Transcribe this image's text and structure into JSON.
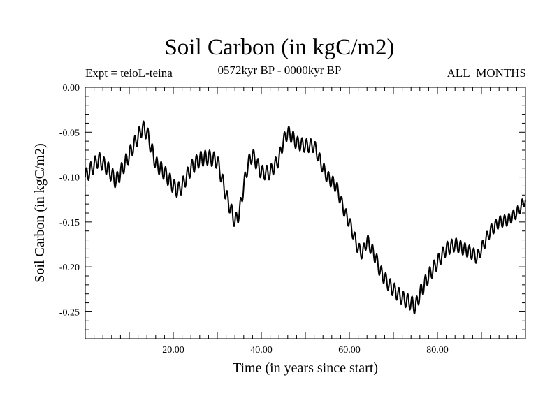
{
  "chart_data": {
    "type": "line",
    "title": "Soil Carbon (in kgC/m2)",
    "subtitle": "0572kyr BP - 0000kyr BP",
    "left_annotation": "Expt = teioL-teina",
    "right_annotation": "ALL_MONTHS",
    "xlabel": "Time (in years since start)",
    "ylabel": "Soil Carbon (in kgC/m2)",
    "xlim": [
      0,
      100
    ],
    "ylim": [
      -0.28,
      0.0
    ],
    "x_ticks": [
      20,
      40,
      60,
      80
    ],
    "x_tick_labels": [
      "20.00",
      "40.00",
      "60.00",
      "80.00"
    ],
    "y_ticks": [
      0.0,
      -0.05,
      -0.1,
      -0.15,
      -0.2,
      -0.25
    ],
    "y_tick_labels": [
      "0.00",
      "-0.05",
      "-0.10",
      "-0.15",
      "-0.20",
      "-0.25"
    ],
    "series": [
      {
        "name": "Soil Carbon",
        "oscillation_period_years": 1,
        "trend": {
          "x": [
            0,
            3,
            5,
            7,
            9,
            11,
            13,
            14,
            16,
            18,
            20,
            21,
            22,
            24,
            26,
            28,
            30,
            32,
            33,
            34,
            35,
            36,
            37,
            38,
            39,
            40,
            42,
            44,
            45,
            46,
            47,
            48,
            50,
            52,
            54,
            55,
            57,
            59,
            60,
            62,
            63,
            64,
            66,
            67,
            69,
            70,
            72,
            74,
            75,
            76,
            78,
            80,
            82,
            84,
            86,
            88,
            89,
            90,
            92,
            94,
            96,
            98,
            100
          ],
          "y": [
            -0.1,
            -0.08,
            -0.09,
            -0.105,
            -0.085,
            -0.065,
            -0.045,
            -0.05,
            -0.085,
            -0.095,
            -0.11,
            -0.115,
            -0.11,
            -0.09,
            -0.08,
            -0.078,
            -0.082,
            -0.12,
            -0.135,
            -0.15,
            -0.14,
            -0.11,
            -0.085,
            -0.075,
            -0.085,
            -0.095,
            -0.095,
            -0.08,
            -0.06,
            -0.05,
            -0.055,
            -0.062,
            -0.065,
            -0.065,
            -0.09,
            -0.1,
            -0.11,
            -0.14,
            -0.15,
            -0.18,
            -0.185,
            -0.17,
            -0.19,
            -0.205,
            -0.22,
            -0.225,
            -0.235,
            -0.24,
            -0.245,
            -0.23,
            -0.21,
            -0.195,
            -0.18,
            -0.175,
            -0.18,
            -0.185,
            -0.19,
            -0.18,
            -0.16,
            -0.15,
            -0.148,
            -0.14,
            -0.125
          ]
        },
        "oscillation_amplitude": [
          {
            "x": [
              0,
              30,
              60,
              75,
              100
            ],
            "amp": [
              0.0085,
              0.0085,
              0.007,
              0.0085,
              0.006
            ]
          }
        ]
      }
    ]
  }
}
